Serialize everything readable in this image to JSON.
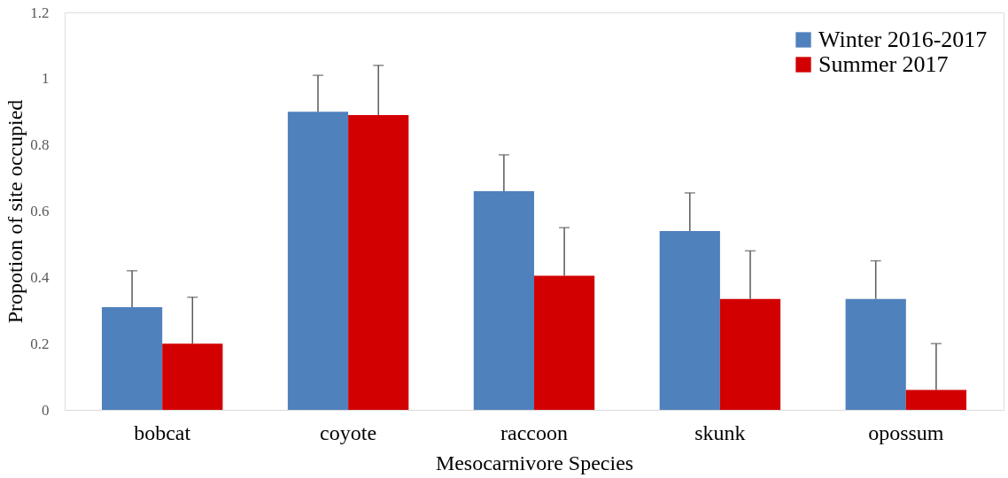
{
  "chart_data": {
    "type": "bar",
    "xlabel": "Mesocarnivore Species",
    "ylabel": "Propotion of site occupied",
    "categories": [
      "bobcat",
      "coyote",
      "raccoon",
      "skunk",
      "opossum"
    ],
    "series": [
      {
        "name": "Winter 2016-2017",
        "color": "#4f81bd",
        "values": [
          0.31,
          0.9,
          0.66,
          0.54,
          0.335
        ],
        "errors": [
          [
            0.31,
            0.42
          ],
          [
            0.9,
            1.01
          ],
          [
            0.66,
            0.77
          ],
          [
            0.54,
            0.655
          ],
          [
            0.335,
            0.45
          ]
        ]
      },
      {
        "name": "Summer 2017",
        "color": "#d20000",
        "values": [
          0.2,
          0.89,
          0.405,
          0.335,
          0.06
        ],
        "errors": [
          [
            0.2,
            0.34
          ],
          [
            0.89,
            1.04
          ],
          [
            0.405,
            0.55
          ],
          [
            0.335,
            0.48
          ],
          [
            0.06,
            0.2
          ]
        ]
      }
    ],
    "ylim": [
      0,
      1.2
    ],
    "yticks": [
      0,
      0.2,
      0.4,
      0.6,
      0.8,
      1,
      1.2
    ],
    "grid": false,
    "legend": "top right"
  }
}
